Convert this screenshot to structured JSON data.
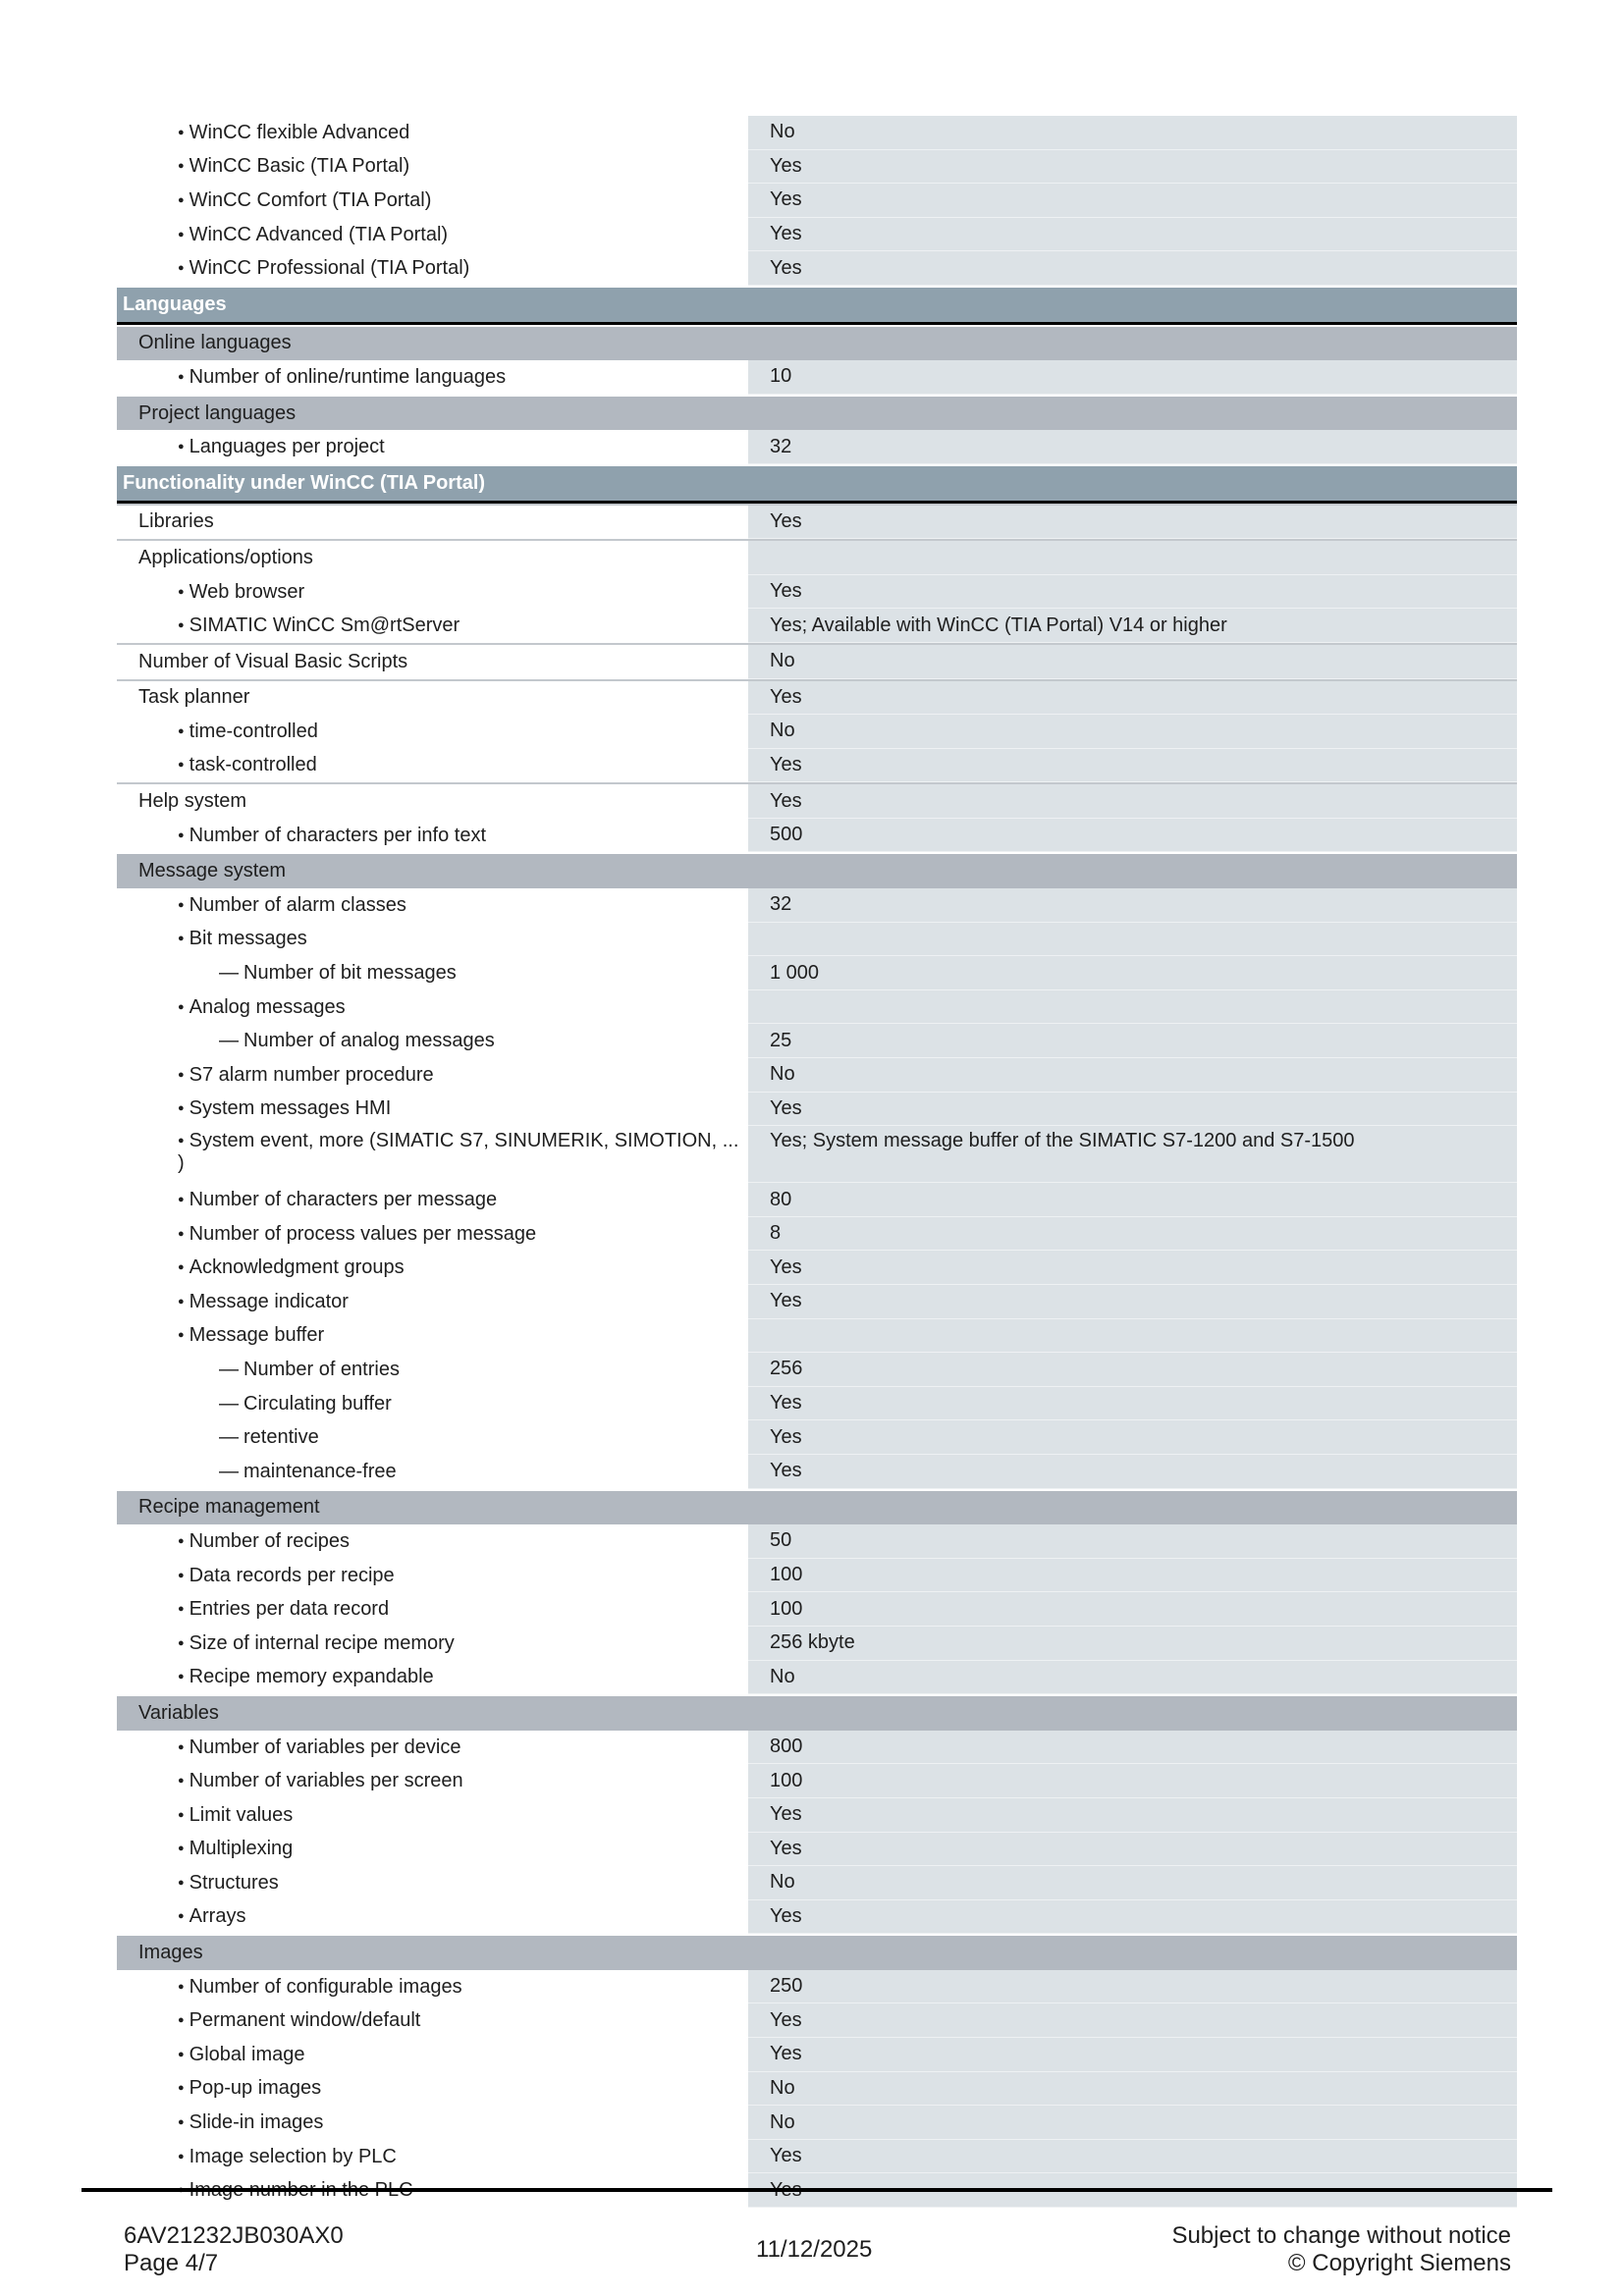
{
  "rows": [
    {
      "t": "r",
      "lvl": 1,
      "l": "WinCC flexible Advanced",
      "v": "No"
    },
    {
      "t": "r",
      "lvl": 1,
      "l": "WinCC Basic (TIA Portal)",
      "v": "Yes"
    },
    {
      "t": "r",
      "lvl": 1,
      "l": "WinCC Comfort (TIA Portal)",
      "v": "Yes"
    },
    {
      "t": "r",
      "lvl": 1,
      "l": "WinCC Advanced (TIA Portal)",
      "v": "Yes"
    },
    {
      "t": "r",
      "lvl": 1,
      "l": "WinCC Professional (TIA Portal)",
      "v": "Yes"
    },
    {
      "t": "h",
      "l": "Languages",
      "v": ""
    },
    {
      "t": "s",
      "l": "Online languages",
      "v": ""
    },
    {
      "t": "r",
      "lvl": 1,
      "l": "Number of online/runtime languages",
      "v": "10"
    },
    {
      "t": "s",
      "l": "Project languages",
      "v": ""
    },
    {
      "t": "r",
      "lvl": 1,
      "l": "Languages per project",
      "v": "32"
    },
    {
      "t": "h",
      "l": "Functionality under WinCC (TIA Portal)",
      "v": ""
    },
    {
      "t": "r",
      "lvl": 0,
      "l": "Libraries",
      "v": "Yes"
    },
    {
      "t": "r",
      "lvl": 0,
      "l": "Applications/options",
      "v": ""
    },
    {
      "t": "r",
      "lvl": 1,
      "l": "Web browser",
      "v": "Yes"
    },
    {
      "t": "r",
      "lvl": 1,
      "l": "SIMATIC WinCC Sm@rtServer",
      "v": "Yes; Available with WinCC (TIA Portal) V14 or higher"
    },
    {
      "t": "r",
      "lvl": 0,
      "l": "Number of Visual Basic Scripts",
      "v": "No"
    },
    {
      "t": "r",
      "lvl": 0,
      "l": "Task planner",
      "v": "Yes"
    },
    {
      "t": "r",
      "lvl": 1,
      "l": "time-controlled",
      "v": "No"
    },
    {
      "t": "r",
      "lvl": 1,
      "l": "task-controlled",
      "v": "Yes"
    },
    {
      "t": "r",
      "lvl": 0,
      "l": "Help system",
      "v": "Yes"
    },
    {
      "t": "r",
      "lvl": 1,
      "l": "Number of characters per info text",
      "v": "500"
    },
    {
      "t": "s",
      "l": "Message system",
      "v": ""
    },
    {
      "t": "r",
      "lvl": 1,
      "l": "Number of alarm classes",
      "v": "32"
    },
    {
      "t": "r",
      "lvl": 1,
      "l": "Bit messages",
      "v": ""
    },
    {
      "t": "r",
      "lvl": 2,
      "l": "Number of bit messages",
      "v": "1 000"
    },
    {
      "t": "r",
      "lvl": 1,
      "l": "Analog messages",
      "v": ""
    },
    {
      "t": "r",
      "lvl": 2,
      "l": "Number of analog messages",
      "v": "25"
    },
    {
      "t": "r",
      "lvl": 1,
      "l": "S7 alarm number procedure",
      "v": "No"
    },
    {
      "t": "r",
      "lvl": 1,
      "l": "System messages HMI",
      "v": "Yes"
    },
    {
      "t": "r",
      "lvl": 1,
      "tall": true,
      "l": "System event, more (SIMATIC S7, SINUMERIK, SIMOTION, ... )",
      "v": "Yes; System message buffer of the SIMATIC S7-1200 and S7-1500"
    },
    {
      "t": "r",
      "lvl": 1,
      "l": "Number of characters per message",
      "v": "80"
    },
    {
      "t": "r",
      "lvl": 1,
      "l": "Number of process values per message",
      "v": "8"
    },
    {
      "t": "r",
      "lvl": 1,
      "l": "Acknowledgment groups",
      "v": "Yes"
    },
    {
      "t": "r",
      "lvl": 1,
      "l": "Message indicator",
      "v": "Yes"
    },
    {
      "t": "r",
      "lvl": 1,
      "l": "Message buffer",
      "v": ""
    },
    {
      "t": "r",
      "lvl": 2,
      "l": "Number of entries",
      "v": "256"
    },
    {
      "t": "r",
      "lvl": 2,
      "l": "Circulating buffer",
      "v": "Yes"
    },
    {
      "t": "r",
      "lvl": 2,
      "l": "retentive",
      "v": "Yes"
    },
    {
      "t": "r",
      "lvl": 2,
      "l": "maintenance-free",
      "v": "Yes"
    },
    {
      "t": "s",
      "l": "Recipe management",
      "v": ""
    },
    {
      "t": "r",
      "lvl": 1,
      "l": "Number of recipes",
      "v": "50"
    },
    {
      "t": "r",
      "lvl": 1,
      "l": "Data records per recipe",
      "v": "100"
    },
    {
      "t": "r",
      "lvl": 1,
      "l": "Entries per data record",
      "v": "100"
    },
    {
      "t": "r",
      "lvl": 1,
      "l": "Size of internal recipe memory",
      "v": "256 kbyte"
    },
    {
      "t": "r",
      "lvl": 1,
      "l": "Recipe memory expandable",
      "v": "No"
    },
    {
      "t": "s",
      "l": "Variables",
      "v": ""
    },
    {
      "t": "r",
      "lvl": 1,
      "l": "Number of variables per device",
      "v": "800"
    },
    {
      "t": "r",
      "lvl": 1,
      "l": "Number of variables per screen",
      "v": "100"
    },
    {
      "t": "r",
      "lvl": 1,
      "l": "Limit values",
      "v": "Yes"
    },
    {
      "t": "r",
      "lvl": 1,
      "l": "Multiplexing",
      "v": "Yes"
    },
    {
      "t": "r",
      "lvl": 1,
      "l": "Structures",
      "v": "No"
    },
    {
      "t": "r",
      "lvl": 1,
      "l": "Arrays",
      "v": "Yes"
    },
    {
      "t": "s",
      "l": "Images",
      "v": ""
    },
    {
      "t": "r",
      "lvl": 1,
      "l": "Number of configurable images",
      "v": "250"
    },
    {
      "t": "r",
      "lvl": 1,
      "l": "Permanent window/default",
      "v": "Yes"
    },
    {
      "t": "r",
      "lvl": 1,
      "l": "Global image",
      "v": "Yes"
    },
    {
      "t": "r",
      "lvl": 1,
      "l": "Pop-up images",
      "v": "No"
    },
    {
      "t": "r",
      "lvl": 1,
      "l": "Slide-in images",
      "v": "No"
    },
    {
      "t": "r",
      "lvl": 1,
      "l": "Image selection by PLC",
      "v": "Yes"
    },
    {
      "t": "r",
      "lvl": 1,
      "l": "Image number in the PLC",
      "v": "Yes"
    }
  ],
  "footer": {
    "article_number": "6AV21232JB030AX0",
    "page": "Page 4/7",
    "date": "11/12/2025",
    "notice": "Subject to change without notice",
    "copyright": "© Copyright Siemens"
  },
  "colors": {
    "header": "#8fa1ad",
    "subheader": "#b2b8c0",
    "value_bg": "#dce2e6"
  }
}
